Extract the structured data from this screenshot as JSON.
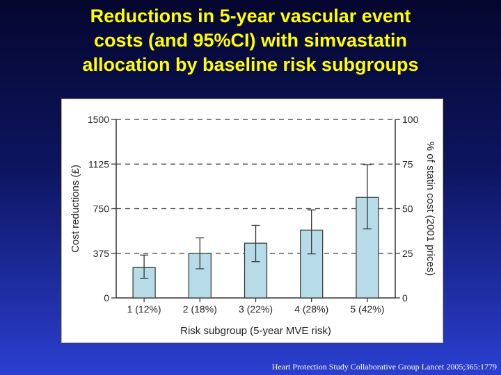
{
  "title_lines": [
    "Reductions in 5-year vascular event",
    "costs (and 95%CI) with simvastatin",
    "allocation by baseline risk subgroups"
  ],
  "source": "Heart Protection Study Collaborative Group Lancet 2005;365:1779",
  "colors": {
    "title": "#ffff00",
    "bar_fill": "#b8dbe8",
    "bar_stroke": "#333333"
  },
  "chart_data": {
    "type": "bar",
    "categories": [
      "1 (12%)",
      "2 (18%)",
      "3 (22%)",
      "4 (28%)",
      "5 (42%)"
    ],
    "values": [
      255,
      375,
      460,
      570,
      845
    ],
    "ci_low": [
      165,
      245,
      305,
      370,
      580
    ],
    "ci_high": [
      360,
      505,
      610,
      740,
      1120
    ],
    "xlabel": "Risk subgroup (5-year MVE risk)",
    "ylabel": "Cost reductions (£)",
    "ylabel_right": "% of statin cost (2001 prices)",
    "ylim": [
      0,
      1500
    ],
    "yticks": [
      0,
      375,
      750,
      1125,
      1500
    ],
    "yticks_right": [
      "0",
      "25",
      "50",
      "75",
      "100"
    ],
    "grid": "dashed horizontal at major ticks"
  }
}
